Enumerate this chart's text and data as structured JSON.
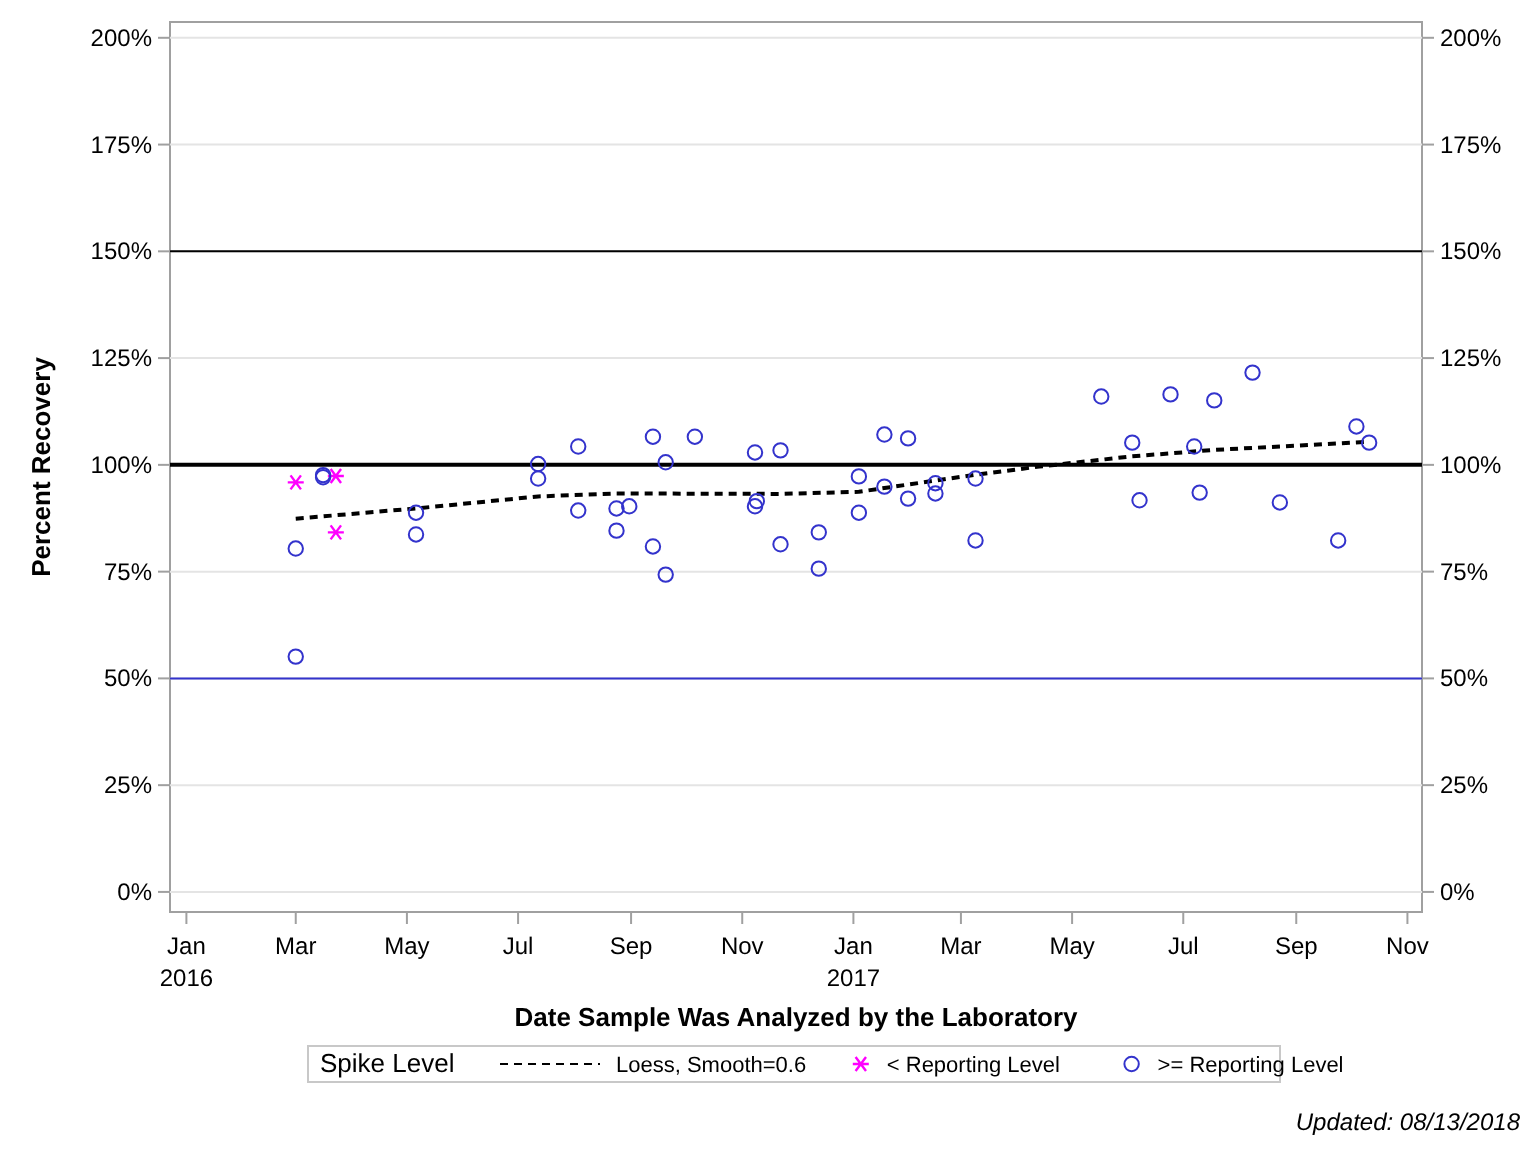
{
  "chart_data": {
    "type": "scatter",
    "xlabel": "Date Sample Was Analyzed by the Laboratory",
    "ylabel": "Percent Recovery",
    "legend_title": "Spike Level",
    "annotations": [
      "Updated: 08/13/2018"
    ],
    "xlim": [
      "2015-12-23",
      "2017-11-09"
    ],
    "xticks": [
      {
        "value": "2016-01-01",
        "label": "Jan\n2016"
      },
      {
        "value": "2016-03-01",
        "label": "Mar"
      },
      {
        "value": "2016-05-01",
        "label": "May"
      },
      {
        "value": "2016-07-01",
        "label": "Jul"
      },
      {
        "value": "2016-09-01",
        "label": "Sep"
      },
      {
        "value": "2016-11-01",
        "label": "Nov"
      },
      {
        "value": "2017-01-01",
        "label": "Jan\n2017"
      },
      {
        "value": "2017-03-01",
        "label": "Mar"
      },
      {
        "value": "2017-05-01",
        "label": "May"
      },
      {
        "value": "2017-07-01",
        "label": "Jul"
      },
      {
        "value": "2017-09-01",
        "label": "Sep"
      },
      {
        "value": "2017-11-01",
        "label": "Nov"
      }
    ],
    "ylim": [
      -4.7,
      203.7
    ],
    "yticks": [
      {
        "value": 0,
        "label": "0%"
      },
      {
        "value": 25,
        "label": "25%"
      },
      {
        "value": 50,
        "label": "50%"
      },
      {
        "value": 75,
        "label": "75%"
      },
      {
        "value": 100,
        "label": "100%"
      },
      {
        "value": 125,
        "label": "125%"
      },
      {
        "value": 150,
        "label": "150%"
      },
      {
        "value": 175,
        "label": "175%"
      },
      {
        "value": 200,
        "label": "200%"
      }
    ],
    "y2lim": [
      -4.7,
      203.7
    ],
    "y2ticks": [
      {
        "value": 0,
        "label": "0%"
      },
      {
        "value": 25,
        "label": "25%"
      },
      {
        "value": 50,
        "label": "50%"
      },
      {
        "value": 75,
        "label": "75%"
      },
      {
        "value": 100,
        "label": "100%"
      },
      {
        "value": 125,
        "label": "125%"
      },
      {
        "value": 150,
        "label": "150%"
      },
      {
        "value": 175,
        "label": "175%"
      },
      {
        "value": 200,
        "label": "200%"
      }
    ],
    "grid": "y",
    "legend": "bottom",
    "ref_lines": [
      {
        "axis": "y",
        "value": 100,
        "color": "#000000"
      },
      {
        "axis": "y",
        "value": 150,
        "color": "#000000"
      },
      {
        "axis": "y",
        "value": 50,
        "color": "#3333cc"
      }
    ],
    "series": [
      {
        "name": "Loess, Smooth=0.6",
        "type": "line",
        "line_style": "dashed",
        "color": "#000000",
        "x": [
          "2016-03-01",
          "2016-05-06",
          "2016-07-12",
          "2016-08-24",
          "2016-11-22",
          "2017-01-04",
          "2017-03-09",
          "2017-04-13",
          "2017-06-03",
          "2017-07-18",
          "2017-10-11"
        ],
        "values": [
          87.4,
          89.8,
          92.6,
          93.3,
          93.2,
          93.7,
          97.7,
          99.6,
          102.0,
          103.5,
          105.4
        ]
      },
      {
        "name": "< Reporting Level",
        "marker": "cross",
        "color": "#ff00ff",
        "x": [
          "2016-03-01",
          "2016-03-23",
          "2016-03-23"
        ],
        "values": [
          95.9,
          97.4,
          84.2
        ]
      },
      {
        "name": ">= Reporting Level",
        "marker": "circle",
        "color": "#3333cc",
        "x": [
          "2016-03-01",
          "2016-03-01",
          "2016-03-16",
          "2016-03-16",
          "2016-05-06",
          "2016-05-06",
          "2016-07-12",
          "2016-07-12",
          "2016-08-03",
          "2016-08-03",
          "2016-08-24",
          "2016-08-24",
          "2016-08-31",
          "2016-09-13",
          "2016-09-13",
          "2016-09-20",
          "2016-09-20",
          "2016-10-06",
          "2016-11-08",
          "2016-11-08",
          "2016-11-09",
          "2016-11-22",
          "2016-11-22",
          "2016-12-13",
          "2016-12-13",
          "2017-01-04",
          "2017-01-04",
          "2017-01-18",
          "2017-01-18",
          "2017-01-31",
          "2017-01-31",
          "2017-02-15",
          "2017-02-15",
          "2017-03-09",
          "2017-03-09",
          "2017-05-17",
          "2017-06-03",
          "2017-06-07",
          "2017-06-24",
          "2017-07-07",
          "2017-07-10",
          "2017-07-18",
          "2017-08-08",
          "2017-08-23",
          "2017-09-24",
          "2017-10-04",
          "2017-10-11"
        ],
        "values": [
          80.4,
          55.1,
          97.1,
          97.6,
          88.8,
          83.7,
          100.2,
          96.8,
          104.3,
          89.3,
          89.8,
          84.6,
          90.3,
          106.6,
          80.9,
          100.6,
          74.3,
          106.6,
          102.9,
          90.3,
          91.5,
          103.4,
          81.4,
          84.2,
          75.7,
          97.3,
          88.8,
          107.1,
          94.9,
          106.2,
          92.1,
          95.7,
          93.3,
          96.8,
          82.3,
          116.0,
          105.2,
          91.7,
          116.5,
          104.3,
          93.5,
          115.1,
          121.6,
          91.2,
          82.3,
          109.0,
          105.2
        ]
      }
    ]
  }
}
